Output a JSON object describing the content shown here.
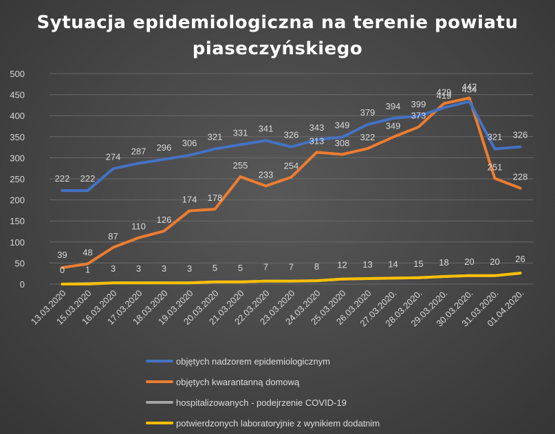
{
  "chart_data": {
    "type": "line",
    "title_line1": "Sytuacja epidemiologiczna na terenie powiatu",
    "title_line2": "piaseczyńskiego",
    "xlabel": "",
    "ylabel": "",
    "ylim": [
      0,
      500
    ],
    "yticks": [
      0,
      50,
      100,
      150,
      200,
      250,
      300,
      350,
      400,
      450,
      500
    ],
    "grid": true,
    "legend_position": "bottom",
    "categories": [
      "13.03.2020",
      "15.03.2020",
      "16.03.2020",
      "17.03.2020",
      "18.03.2020",
      "19.03.2020",
      "20.03.2020",
      "21.03.2020",
      "22.03.2020",
      "23.03.2020",
      "24.03.2020",
      "25.03.2020",
      "26.03.2020",
      "27.03.2020.",
      "28.03.2020.",
      "29.03.2020.",
      "30.03.2020.",
      "31.03.2020.",
      "01.04.2020."
    ],
    "series": [
      {
        "name": "objętych nadzorem epidemiologicznym",
        "color": "#4472C4",
        "values": [
          222,
          222,
          274,
          287,
          296,
          306,
          321,
          331,
          341,
          326,
          343,
          349,
          379,
          394,
          399,
          419,
          434,
          321,
          326
        ]
      },
      {
        "name": "objętych kwarantanną domową",
        "color": "#ED7D31",
        "values": [
          39,
          48,
          87,
          110,
          126,
          174,
          178,
          255,
          233,
          254,
          313,
          308,
          322,
          349,
          373,
          429,
          442,
          251,
          228
        ]
      },
      {
        "name": "hospitalizowanych - podejrzenie COVID-19",
        "color": "#A5A5A5",
        "values": [
          0,
          1,
          3,
          3,
          3,
          3,
          5,
          5,
          7,
          7,
          8,
          12,
          13,
          14,
          15,
          18,
          20,
          20,
          26
        ]
      },
      {
        "name": "potwierdzonych laboratoryjnie z wynikiem dodatnim",
        "color": "#FFC000",
        "values": [
          0,
          0,
          3,
          3,
          3,
          3,
          5,
          5,
          7,
          7,
          8,
          12,
          13,
          14,
          15,
          18,
          20,
          20,
          26
        ]
      }
    ]
  }
}
